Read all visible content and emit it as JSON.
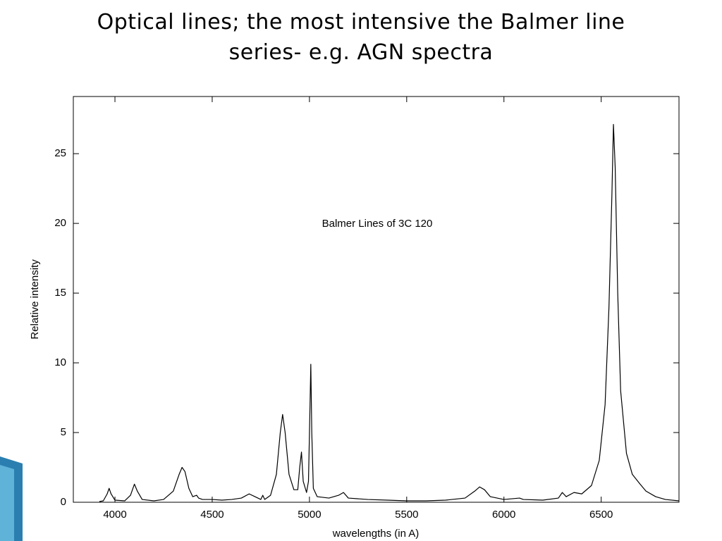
{
  "chart_data": {
    "type": "line",
    "title": "Optical lines; the most intensive the Balmer line series- e.g. AGN spectra",
    "annotation": "Balmer Lines of 3C 120",
    "x_label": "wavelengths (in A)",
    "y_label": "Relative intensity",
    "color": "#000000",
    "grid": false,
    "xlim": [
      3786,
      6900
    ],
    "ylim": [
      0,
      29.1
    ],
    "xticks": [
      4000,
      4500,
      5000,
      5500,
      6000,
      6500
    ],
    "yticks": [
      0,
      5,
      10,
      15,
      20,
      25
    ],
    "x": [
      3920,
      3940,
      3960,
      3970,
      3980,
      4000,
      4050,
      4080,
      4100,
      4115,
      4140,
      4200,
      4250,
      4300,
      4330,
      4345,
      4360,
      4380,
      4400,
      4420,
      4430,
      4450,
      4500,
      4550,
      4600,
      4650,
      4690,
      4720,
      4750,
      4760,
      4770,
      4800,
      4830,
      4850,
      4862,
      4875,
      4895,
      4920,
      4940,
      4950,
      4959,
      4968,
      4985,
      4995,
      5003,
      5007,
      5012,
      5020,
      5040,
      5100,
      5150,
      5175,
      5200,
      5300,
      5400,
      5500,
      5600,
      5700,
      5800,
      5850,
      5875,
      5900,
      5930,
      6000,
      6080,
      6100,
      6200,
      6280,
      6300,
      6320,
      6360,
      6400,
      6450,
      6490,
      6520,
      6540,
      6555,
      6563,
      6572,
      6585,
      6600,
      6630,
      6660,
      6700,
      6730,
      6780,
      6830,
      6900
    ],
    "values": [
      0.05,
      0.1,
      0.6,
      1.0,
      0.6,
      0.15,
      0.1,
      0.5,
      1.3,
      0.8,
      0.2,
      0.1,
      0.2,
      0.8,
      2.0,
      2.5,
      2.2,
      1.0,
      0.4,
      0.5,
      0.3,
      0.2,
      0.2,
      0.15,
      0.2,
      0.3,
      0.6,
      0.4,
      0.2,
      0.5,
      0.2,
      0.5,
      2.0,
      5.0,
      6.3,
      5.0,
      2.0,
      0.9,
      0.9,
      2.5,
      3.6,
      1.5,
      0.7,
      1.5,
      7.0,
      9.9,
      5.0,
      1.0,
      0.4,
      0.3,
      0.5,
      0.7,
      0.3,
      0.2,
      0.15,
      0.1,
      0.1,
      0.15,
      0.3,
      0.8,
      1.1,
      0.9,
      0.4,
      0.2,
      0.3,
      0.2,
      0.15,
      0.3,
      0.7,
      0.4,
      0.7,
      0.6,
      1.2,
      3.0,
      7.0,
      14.0,
      22.0,
      27.1,
      24.0,
      15.0,
      8.0,
      3.5,
      2.0,
      1.3,
      0.8,
      0.4,
      0.2,
      0.1
    ]
  }
}
